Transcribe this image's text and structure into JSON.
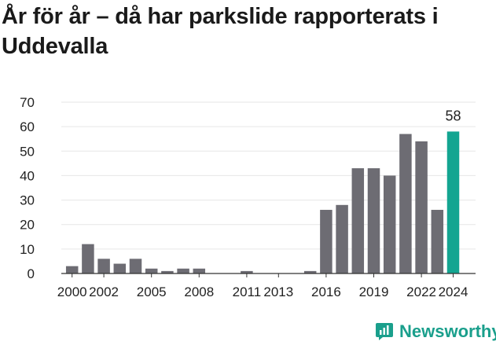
{
  "title": "År för år – då har parkslide rapporterats i Uddevalla",
  "brand": {
    "name": "Newsworthy",
    "icon": "newsworthy-logo-icon",
    "color": "#1a9f8c"
  },
  "colors": {
    "bar": "#6d6c73",
    "highlight": "#13a591",
    "grid": "#e6e6e6",
    "axis": "#333333"
  },
  "chart_data": {
    "type": "bar",
    "title": "År för år – då har parkslide rapporterats i Uddevalla",
    "xlabel": "",
    "ylabel": "",
    "ylim": [
      0,
      70
    ],
    "yticks": [
      0,
      10,
      20,
      30,
      40,
      50,
      60,
      70
    ],
    "grid": true,
    "categories": [
      "1999",
      "2000",
      "2001",
      "2002",
      "2003",
      "2004",
      "2005",
      "2006",
      "2007",
      "2008",
      "2009",
      "2010",
      "2011",
      "2012",
      "2013",
      "2014",
      "2015",
      "2016",
      "2017",
      "2018",
      "2019",
      "2020",
      "2021",
      "2022",
      "2023",
      "2024"
    ],
    "values": [
      0,
      3,
      12,
      6,
      4,
      6,
      2,
      1,
      2,
      2,
      0,
      0,
      1,
      0,
      0,
      0,
      1,
      26,
      28,
      43,
      43,
      40,
      57,
      54,
      26,
      58
    ],
    "xtick_labels": [
      "2000",
      "2002",
      "2005",
      "2008",
      "2011",
      "2013",
      "2016",
      "2019",
      "2022",
      "2024"
    ],
    "highlight": {
      "category": "2024",
      "label": "58"
    }
  }
}
